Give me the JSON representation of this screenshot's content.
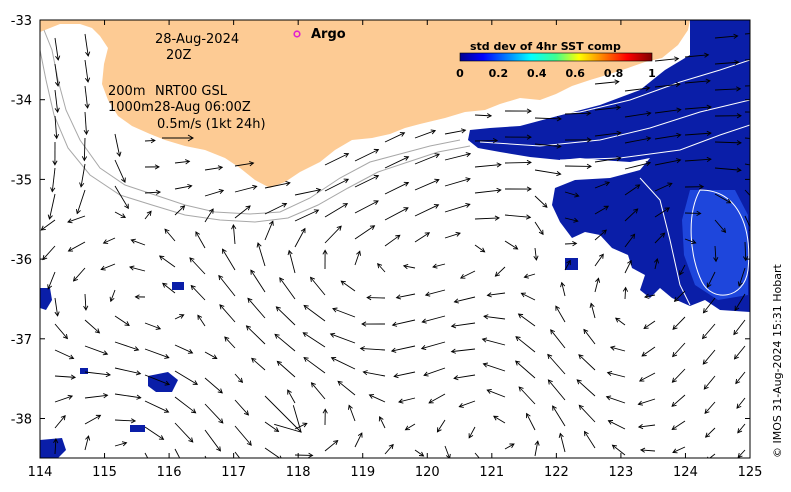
{
  "annotations": {
    "date": "28-Aug-2024",
    "time": "20Z",
    "depth_line1": "200m",
    "depth_line2": "1000m",
    "product": "NRT00 GSL",
    "product_time": "28-Aug 06:00Z",
    "scale_label": "0.5m/s (1kt 24h)",
    "argo_label": "Argo"
  },
  "colorbar": {
    "title": "std dev of 4hr SST comp",
    "ticks": [
      "0",
      "0.2",
      "0.4",
      "0.6",
      "0.8",
      "1"
    ]
  },
  "credit": "© IMOS 31-Aug-2024 15:31 Hobart",
  "axes": {
    "x_ticks": [
      "114",
      "115",
      "116",
      "117",
      "118",
      "119",
      "120",
      "121",
      "122",
      "123",
      "124",
      "125"
    ],
    "y_ticks": [
      "-33",
      "-34",
      "-35",
      "-36",
      "-37",
      "-38"
    ]
  },
  "colors": {
    "land": "#fdcb94",
    "sst_deep": "#0a1ea8",
    "sst_mid": "#1e46dc",
    "argo_marker": "#e020d0",
    "contour": "#ffffff",
    "isobath": "#a8a8a8"
  }
}
